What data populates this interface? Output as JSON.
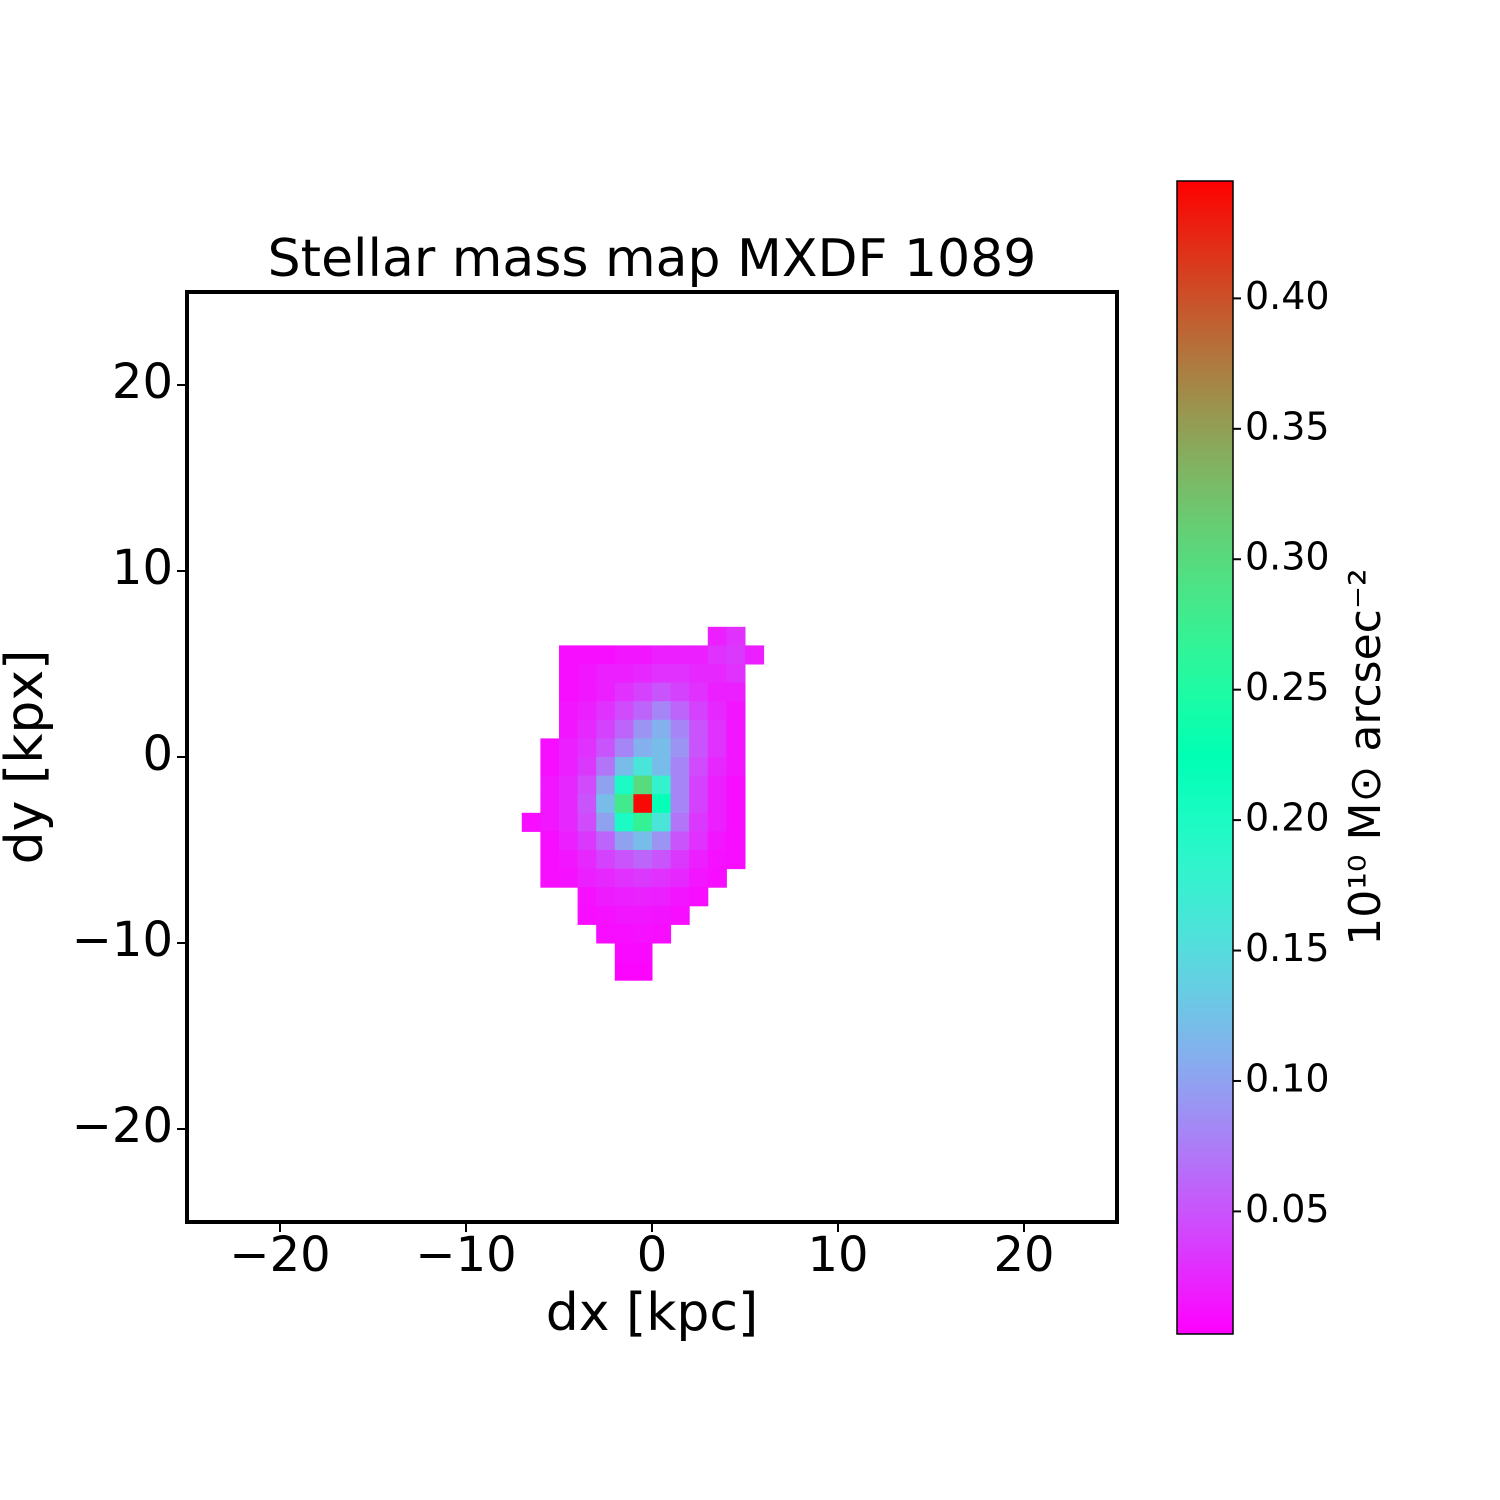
{
  "chart_data": {
    "type": "heatmap",
    "title": "Stellar mass map MXDF 1089",
    "xlabel": "dx [kpc]",
    "ylabel": "dy [kpx]",
    "colorbar_label": "10¹⁰ M⊙ arcsec⁻²",
    "colormap": "rainbow",
    "xlim": [
      -25,
      25
    ],
    "ylim": [
      -25,
      25
    ],
    "xticks": [
      {
        "value": -20,
        "label": "−20"
      },
      {
        "value": -10,
        "label": "−10"
      },
      0,
      10,
      20
    ],
    "yticks": [
      {
        "value": -20,
        "label": "−20"
      },
      {
        "value": -10,
        "label": "−10"
      },
      0,
      10,
      20
    ],
    "clim": [
      0.003,
      0.445
    ],
    "cticks": [
      {
        "value": 0.05,
        "label": "0.05"
      },
      {
        "value": 0.1,
        "label": "0.10"
      },
      {
        "value": 0.15,
        "label": "0.15"
      },
      {
        "value": 0.2,
        "label": "0.20"
      },
      {
        "value": 0.25,
        "label": "0.25"
      },
      {
        "value": 0.3,
        "label": "0.30"
      },
      {
        "value": 0.35,
        "label": "0.35"
      },
      {
        "value": 0.4,
        "label": "0.40"
      }
    ],
    "x": [
      -7,
      -6,
      -5,
      -4,
      -3,
      -2,
      -1,
      0,
      1,
      2,
      3,
      4,
      5,
      6
    ],
    "y": [
      7,
      6,
      5,
      4,
      3,
      2,
      1,
      0,
      -1,
      -2,
      -3,
      -4,
      -5,
      -6,
      -7,
      -8,
      -9,
      -10,
      -11,
      -12
    ],
    "z": [
      [
        null,
        null,
        null,
        null,
        null,
        null,
        null,
        null,
        null,
        null,
        0.02,
        0.03,
        null
      ],
      [
        null,
        null,
        0.01,
        0.01,
        0.01,
        0.015,
        0.015,
        0.02,
        0.02,
        0.02,
        0.03,
        0.035,
        0.02
      ],
      [
        null,
        null,
        0.01,
        0.015,
        0.02,
        0.02,
        0.025,
        0.03,
        0.03,
        0.025,
        0.025,
        0.03,
        null
      ],
      [
        null,
        null,
        0.01,
        0.015,
        0.02,
        0.03,
        0.04,
        0.05,
        0.04,
        0.03,
        0.02,
        0.02,
        null
      ],
      [
        null,
        null,
        0.015,
        0.02,
        0.03,
        0.045,
        0.06,
        0.08,
        0.06,
        0.04,
        0.025,
        0.015,
        null
      ],
      [
        null,
        null,
        0.015,
        0.025,
        0.04,
        0.06,
        0.09,
        0.11,
        0.08,
        0.05,
        0.03,
        0.015,
        null
      ],
      [
        null,
        0.01,
        0.02,
        0.03,
        0.05,
        0.08,
        0.11,
        0.12,
        0.09,
        0.05,
        0.03,
        0.015,
        null
      ],
      [
        null,
        0.01,
        0.02,
        0.035,
        0.07,
        0.12,
        0.16,
        0.12,
        0.08,
        0.045,
        0.025,
        0.015,
        null
      ],
      [
        null,
        0.015,
        0.025,
        0.045,
        0.1,
        0.2,
        0.3,
        0.18,
        0.08,
        0.04,
        0.02,
        0.01,
        null
      ],
      [
        null,
        0.015,
        0.025,
        0.05,
        0.12,
        0.28,
        0.44,
        0.22,
        0.08,
        0.04,
        0.02,
        0.01,
        null
      ],
      [
        0.01,
        0.015,
        0.025,
        0.045,
        0.1,
        0.2,
        0.27,
        0.16,
        0.07,
        0.035,
        0.02,
        0.01,
        null
      ],
      [
        null,
        0.01,
        0.02,
        0.035,
        0.06,
        0.1,
        0.12,
        0.09,
        0.05,
        0.03,
        0.015,
        0.01,
        null
      ],
      [
        null,
        0.01,
        0.015,
        0.025,
        0.04,
        0.05,
        0.06,
        0.05,
        0.035,
        0.02,
        0.012,
        0.01,
        null
      ],
      [
        null,
        0.01,
        0.012,
        0.02,
        0.025,
        0.03,
        0.035,
        0.03,
        0.025,
        0.015,
        0.01,
        null,
        null
      ],
      [
        null,
        null,
        null,
        0.012,
        0.018,
        0.02,
        0.022,
        0.02,
        0.015,
        0.01,
        null,
        null,
        null
      ],
      [
        null,
        null,
        null,
        0.01,
        0.012,
        0.015,
        0.015,
        0.013,
        0.01,
        null,
        null,
        null,
        null
      ],
      [
        null,
        null,
        null,
        null,
        0.01,
        0.01,
        0.012,
        0.01,
        null,
        null,
        null,
        null,
        null
      ],
      [
        null,
        null,
        null,
        null,
        null,
        0.008,
        0.008,
        null,
        null,
        null,
        null,
        null,
        null
      ],
      [
        null,
        null,
        null,
        null,
        null,
        0.006,
        0.006,
        null,
        null,
        null,
        null,
        null,
        null
      ]
    ]
  }
}
